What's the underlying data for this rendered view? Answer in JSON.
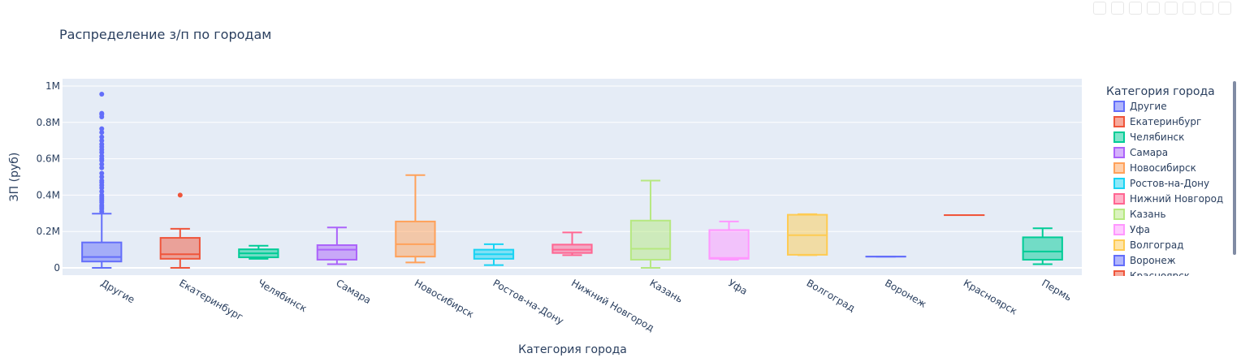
{
  "chart_data": {
    "type": "box",
    "title": "Распределение з/п по городам",
    "xlabel": "Категория города",
    "ylabel": "ЗП (руб)",
    "ylim": [
      -40000,
      1040000
    ],
    "yticks": [
      {
        "value": 0,
        "label": "0"
      },
      {
        "value": 200000,
        "label": "0.2M"
      },
      {
        "value": 400000,
        "label": "0.4M"
      },
      {
        "value": 600000,
        "label": "0.6M"
      },
      {
        "value": 800000,
        "label": "0.8M"
      },
      {
        "value": 1000000,
        "label": "1M"
      }
    ],
    "grid": true,
    "legend_title": "Категория города",
    "legend_position": "right",
    "series": [
      {
        "name": "Другие",
        "color": "#636efa",
        "min": 0,
        "q1": 35000,
        "median": 60000,
        "q3": 140000,
        "max": 298000,
        "outliers": [
          310000,
          325000,
          335000,
          345000,
          360000,
          370000,
          380000,
          390000,
          400000,
          420000,
          440000,
          455000,
          470000,
          480000,
          500000,
          520000,
          550000,
          570000,
          590000,
          600000,
          615000,
          635000,
          650000,
          665000,
          680000,
          700000,
          720000,
          745000,
          765000,
          830000,
          845000,
          850000,
          955000
        ]
      },
      {
        "name": "Екатеринбург",
        "color": "#ef553b",
        "min": 0,
        "q1": 50000,
        "median": 75000,
        "q3": 165000,
        "max": 215000,
        "outliers": [
          400000
        ]
      },
      {
        "name": "Челябинск",
        "color": "#00cc96",
        "min": 50000,
        "q1": 58000,
        "median": 80000,
        "q3": 102000,
        "max": 122000,
        "outliers": []
      },
      {
        "name": "Самара",
        "color": "#ab63fa",
        "min": 20000,
        "q1": 45000,
        "median": 100000,
        "q3": 125000,
        "max": 222000,
        "outliers": []
      },
      {
        "name": "Новосибирск",
        "color": "#ffa15a",
        "min": 30000,
        "q1": 62000,
        "median": 130000,
        "q3": 255000,
        "max": 510000,
        "outliers": []
      },
      {
        "name": "Ростов-на-Дону",
        "color": "#19d3f3",
        "min": 15000,
        "q1": 50000,
        "median": 75000,
        "q3": 100000,
        "max": 130000,
        "outliers": []
      },
      {
        "name": "Нижний Новгород",
        "color": "#ff6692",
        "min": 70000,
        "q1": 82000,
        "median": 100000,
        "q3": 128000,
        "max": 195000,
        "outliers": []
      },
      {
        "name": "Казань",
        "color": "#b6e880",
        "min": 0,
        "q1": 45000,
        "median": 105000,
        "q3": 260000,
        "max": 480000,
        "outliers": []
      },
      {
        "name": "Уфа",
        "color": "#ff97ff",
        "min": 45000,
        "q1": 50000,
        "median": 55000,
        "q3": 208000,
        "max": 255000,
        "outliers": []
      },
      {
        "name": "Волгоград",
        "color": "#fecb52",
        "min": 70000,
        "q1": 72000,
        "median": 180000,
        "q3": 292000,
        "max": 295000,
        "outliers": []
      },
      {
        "name": "Воронеж",
        "color": "#636efa",
        "min": 62000,
        "q1": 62000,
        "median": 62000,
        "q3": 62000,
        "max": 62000,
        "outliers": []
      },
      {
        "name": "Красноярск",
        "color": "#ef553b",
        "min": 290000,
        "q1": 290000,
        "median": 290000,
        "q3": 290000,
        "max": 290000,
        "outliers": []
      },
      {
        "name": "Пермь",
        "color": "#00cc96",
        "min": 20000,
        "q1": 45000,
        "median": 90000,
        "q3": 168000,
        "max": 218000,
        "outliers": []
      }
    ]
  }
}
